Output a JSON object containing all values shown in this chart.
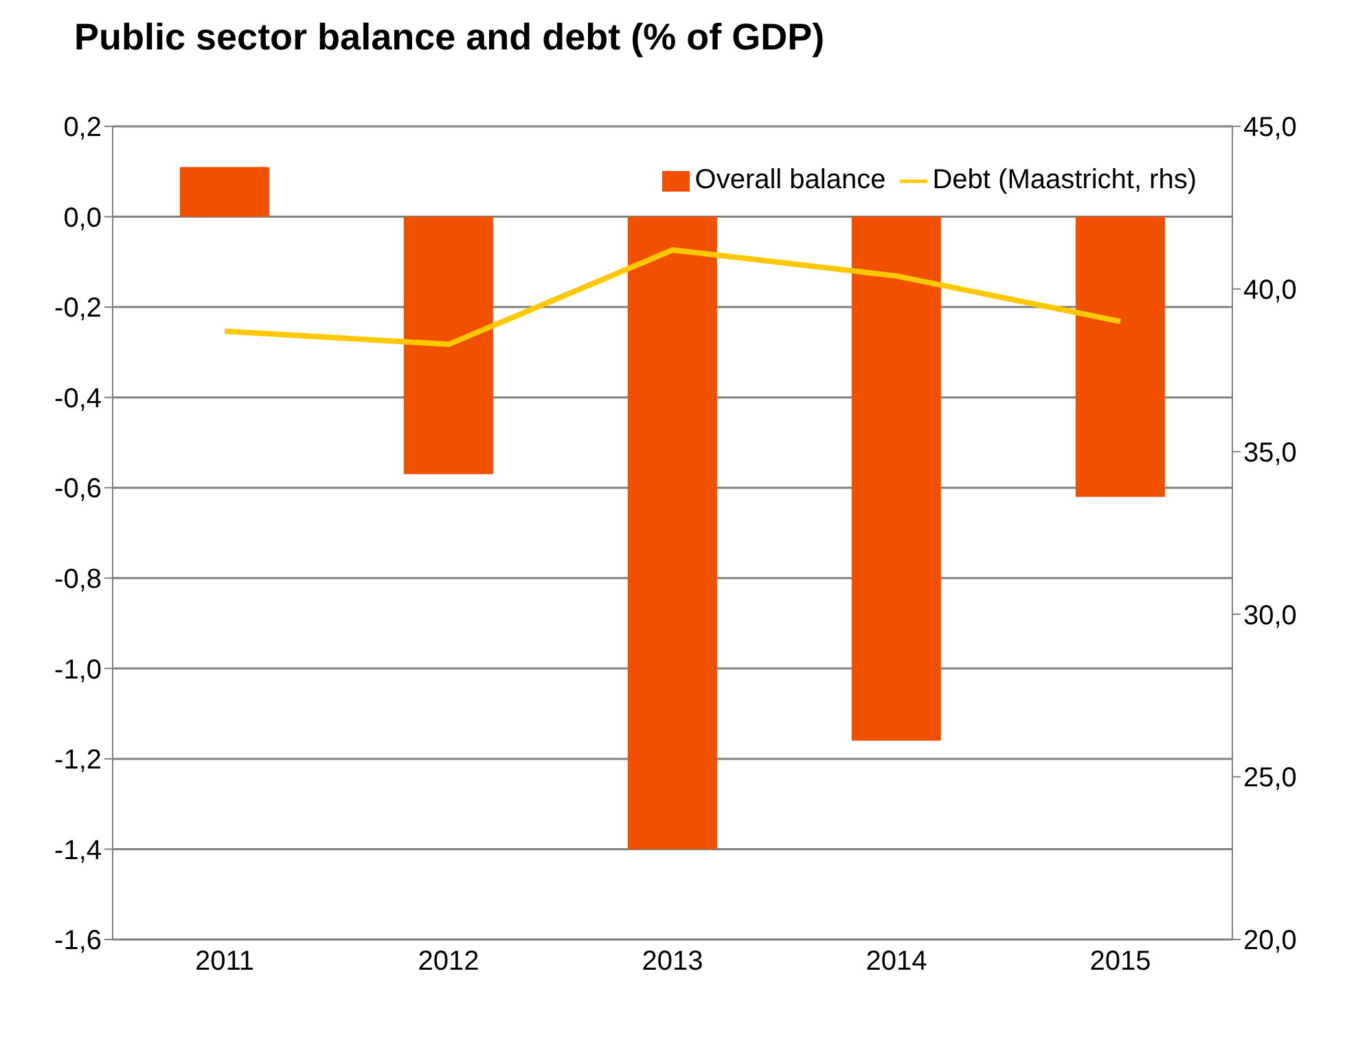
{
  "chart_data": {
    "type": "bar",
    "title": "Public sector balance and debt (% of GDP)",
    "categories": [
      "2011",
      "2012",
      "2013",
      "2014",
      "2015"
    ],
    "series": [
      {
        "name": "Overall balance",
        "color": "#f05000",
        "values": [
          0.11,
          -0.57,
          -1.4,
          -1.16,
          -0.62
        ]
      },
      {
        "name": "Debt (Maastricht, rhs)",
        "type": "line",
        "axis": "y2",
        "color": "#ffc800",
        "values": [
          38.7,
          38.3,
          41.2,
          40.4,
          39.0
        ]
      }
    ],
    "ylim": [
      -1.6,
      0.2
    ],
    "yticks": [
      {
        "value": -1.6,
        "label": "-1,6"
      },
      {
        "value": -1.4,
        "label": "-1,4"
      },
      {
        "value": -1.2,
        "label": "-1,2"
      },
      {
        "value": -1.0,
        "label": "-1,0"
      },
      {
        "value": -0.8,
        "label": "-0,8"
      },
      {
        "value": -0.6,
        "label": "-0,6"
      },
      {
        "value": -0.4,
        "label": "-0,4"
      },
      {
        "value": -0.2,
        "label": "-0,2"
      },
      {
        "value": 0,
        "label": "0,0"
      },
      {
        "value": 0.2,
        "label": "0,2"
      }
    ],
    "y2lim": [
      20,
      45
    ],
    "y2ticks": [
      {
        "value": 20,
        "label": "20,0"
      },
      {
        "value": 25,
        "label": "25,0"
      },
      {
        "value": 30,
        "label": "30,0"
      },
      {
        "value": 35,
        "label": "35,0"
      },
      {
        "value": 40,
        "label": "40,0"
      },
      {
        "value": 45,
        "label": "45,0"
      }
    ],
    "grid": "y",
    "legend": "top right",
    "marker": "none",
    "line_style": "solid"
  }
}
